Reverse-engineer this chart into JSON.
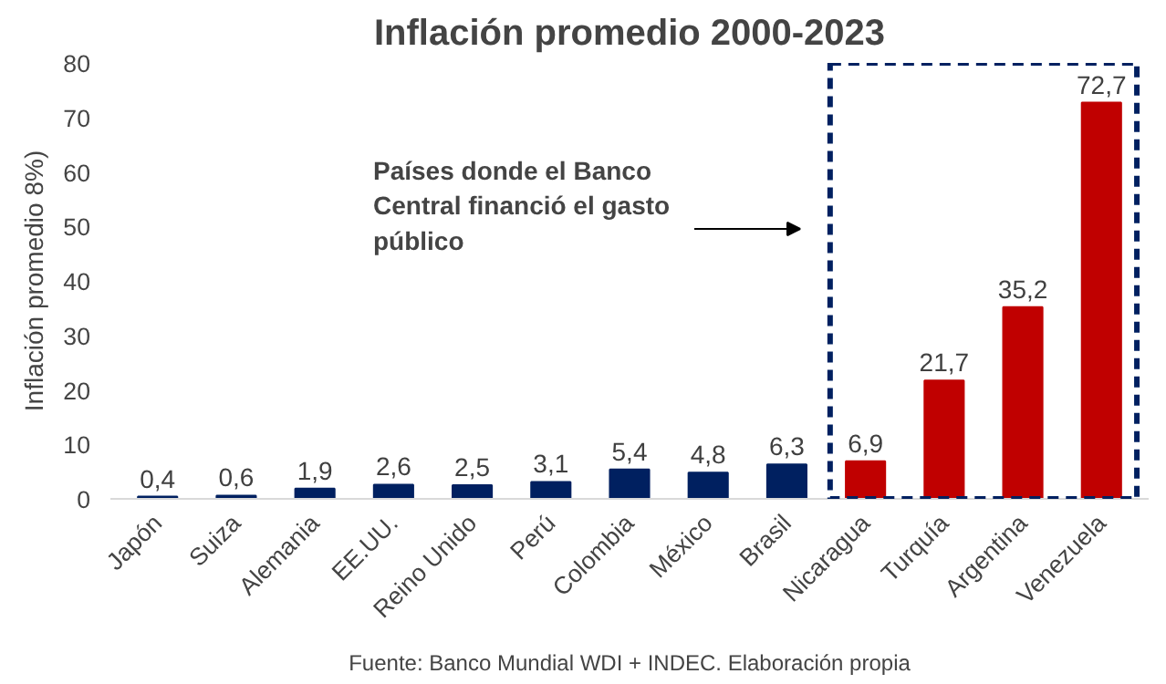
{
  "chart_data": {
    "type": "bar",
    "title": "Inflación promedio 2000-2023",
    "ylabel": "Inflación promedio 8%)",
    "categories": [
      "Japón",
      "Suiza",
      "Alemania",
      "EE.UU.",
      "Reino Unido",
      "Perú",
      "Colombia",
      "México",
      "Brasil",
      "Nicaragua",
      "Turquía",
      "Argentina",
      "Venezuela"
    ],
    "values": [
      0.4,
      0.6,
      1.9,
      2.6,
      2.5,
      3.1,
      5.4,
      4.8,
      6.3,
      6.9,
      21.7,
      35.2,
      72.7
    ],
    "colors": [
      "#002060",
      "#002060",
      "#002060",
      "#002060",
      "#002060",
      "#002060",
      "#002060",
      "#002060",
      "#002060",
      "#c00000",
      "#c00000",
      "#c00000",
      "#c00000"
    ],
    "ylim": [
      0,
      80
    ],
    "yticks": [
      0,
      10,
      20,
      30,
      40,
      50,
      60,
      70,
      80
    ],
    "grid": false,
    "value_labels": [
      "0,4",
      "0,6",
      "1,9",
      "2,6",
      "2,5",
      "3,1",
      "5,4",
      "4,8",
      "6,3",
      "6,9",
      "21,7",
      "35,2",
      "72,7"
    ],
    "annotations": [
      "Países donde el Banco\nCentral financió el gasto\npúblico",
      "Fuente: Banco Mundial WDI + INDEC. Elaboración propia"
    ]
  }
}
